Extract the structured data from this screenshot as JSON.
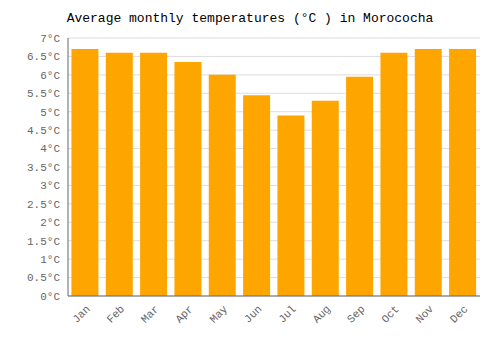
{
  "chart_data": {
    "type": "bar",
    "title": "Average monthly temperatures (°C ) in Morococha",
    "categories": [
      "Jan",
      "Feb",
      "Mar",
      "Apr",
      "May",
      "Jun",
      "Jul",
      "Aug",
      "Sep",
      "Oct",
      "Nov",
      "Dec"
    ],
    "values": [
      6.7,
      6.6,
      6.6,
      6.35,
      6.0,
      5.45,
      4.9,
      5.3,
      5.95,
      6.6,
      6.7,
      6.7
    ],
    "color": "#FFA500",
    "ylim": [
      0,
      7
    ],
    "yticks": [
      {
        "value": 0,
        "label": "0°C"
      },
      {
        "value": 0.5,
        "label": "0.5°C"
      },
      {
        "value": 1,
        "label": "1°C"
      },
      {
        "value": 1.5,
        "label": "1.5°C"
      },
      {
        "value": 2,
        "label": "2°C"
      },
      {
        "value": 2.5,
        "label": "2.5°C"
      },
      {
        "value": 3,
        "label": "3°C"
      },
      {
        "value": 3.5,
        "label": "3.5°C"
      },
      {
        "value": 4,
        "label": "4°C"
      },
      {
        "value": 4.5,
        "label": "4.5°C"
      },
      {
        "value": 5,
        "label": "5°C"
      },
      {
        "value": 5.5,
        "label": "5.5°C"
      },
      {
        "value": 6,
        "label": "6°C"
      },
      {
        "value": 6.5,
        "label": "6.5°C"
      },
      {
        "value": 7,
        "label": "7°C"
      }
    ],
    "grid": true
  }
}
